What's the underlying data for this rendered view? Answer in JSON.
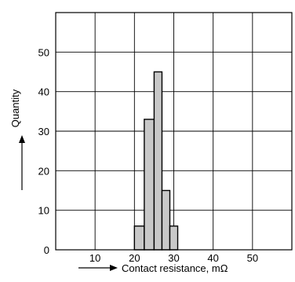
{
  "chart_data": {
    "type": "bar",
    "title": "",
    "xlabel": "Contact resistance, mΩ",
    "ylabel": "Quantity",
    "x_ticks": [
      10,
      20,
      30,
      40,
      50
    ],
    "y_ticks": [
      0,
      10,
      20,
      30,
      40,
      50
    ],
    "xlim": [
      0,
      60
    ],
    "ylim": [
      0,
      60
    ],
    "grid": true,
    "bins": [
      {
        "x0": 20,
        "x1": 22.5,
        "value": 6
      },
      {
        "x0": 22.5,
        "x1": 25,
        "value": 33
      },
      {
        "x0": 25,
        "x1": 27,
        "value": 45
      },
      {
        "x0": 27,
        "x1": 29,
        "value": 15
      },
      {
        "x0": 29,
        "x1": 31,
        "value": 6
      }
    ],
    "colors": {
      "bar_fill": "#c8c8c8",
      "stroke": "#000000"
    }
  }
}
